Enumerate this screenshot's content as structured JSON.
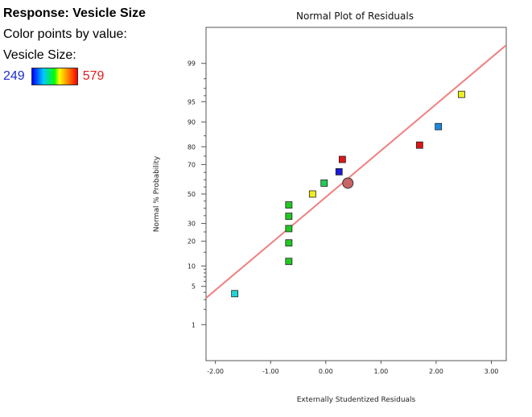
{
  "legend": {
    "title": "Response: Vesicle Size",
    "color_by_label": "Color points by value:",
    "variable_label": "Vesicle Size:",
    "min_value": "249",
    "max_value": "579",
    "gradient_colors": [
      "#0000ff",
      "#00c8ff",
      "#00ff00",
      "#ffff00",
      "#ff0000"
    ]
  },
  "chart_data": {
    "type": "scatter",
    "title": "Normal Plot of Residuals",
    "xlabel": "Externally Studentized Residuals",
    "ylabel": "Normal % Probability",
    "x_ticks": [
      {
        "value": -2,
        "label": "-2.00"
      },
      {
        "value": -1,
        "label": "-1.00"
      },
      {
        "value": 0,
        "label": "0.00"
      },
      {
        "value": 1,
        "label": "1.00"
      },
      {
        "value": 2,
        "label": "2.00"
      },
      {
        "value": 3,
        "label": "3.00"
      }
    ],
    "y_ticks_labeled": [
      {
        "value": 1,
        "label": "1"
      },
      {
        "value": 5,
        "label": "5"
      },
      {
        "value": 10,
        "label": "10"
      },
      {
        "value": 20,
        "label": "20"
      },
      {
        "value": 30,
        "label": "30"
      },
      {
        "value": 50,
        "label": "50"
      },
      {
        "value": 70,
        "label": "70"
      },
      {
        "value": 80,
        "label": "80"
      },
      {
        "value": 90,
        "label": "90"
      },
      {
        "value": 95,
        "label": "95"
      },
      {
        "value": 99,
        "label": "99"
      }
    ],
    "y_ticks_minor": [
      2,
      3,
      4,
      6,
      7,
      8,
      9,
      15,
      25,
      35,
      40,
      45,
      55,
      60,
      65,
      75,
      85,
      96,
      97,
      98
    ],
    "xlim": [
      -2.17,
      3.27
    ],
    "ylim": [
      0.15,
      99.85
    ],
    "y_scale": "normal-probability",
    "reference_line": {
      "color": "#f08080",
      "points": [
        [
          -2.17,
          3.2
        ],
        [
          3.27,
          99.6
        ]
      ]
    },
    "points": [
      {
        "x": -1.65,
        "y": 3.8,
        "color": "#1ed6d6",
        "shape": "square"
      },
      {
        "x": -0.67,
        "y": 11.5,
        "color": "#22c822",
        "shape": "square"
      },
      {
        "x": -0.67,
        "y": 19.2,
        "color": "#22c822",
        "shape": "square"
      },
      {
        "x": -0.67,
        "y": 26.9,
        "color": "#22c822",
        "shape": "square"
      },
      {
        "x": -0.67,
        "y": 34.6,
        "color": "#22c822",
        "shape": "square"
      },
      {
        "x": -0.67,
        "y": 42.3,
        "color": "#22c822",
        "shape": "square"
      },
      {
        "x": -0.24,
        "y": 50.0,
        "color": "#eeee22",
        "shape": "square"
      },
      {
        "x": -0.03,
        "y": 57.7,
        "color": "#22cc55",
        "shape": "square"
      },
      {
        "x": 0.24,
        "y": 65.4,
        "color": "#1a1ad6",
        "shape": "square"
      },
      {
        "x": 0.3,
        "y": 73.1,
        "color": "#e01515",
        "shape": "square"
      },
      {
        "x": 1.7,
        "y": 80.8,
        "color": "#e01515",
        "shape": "square"
      },
      {
        "x": 2.04,
        "y": 88.5,
        "color": "#1e88e0",
        "shape": "square"
      },
      {
        "x": 2.46,
        "y": 96.2,
        "color": "#eeee22",
        "shape": "square"
      },
      {
        "x": 0.4,
        "y": 57.7,
        "color": "#c86464",
        "shape": "circle"
      }
    ],
    "grid": false,
    "legend": "none"
  }
}
